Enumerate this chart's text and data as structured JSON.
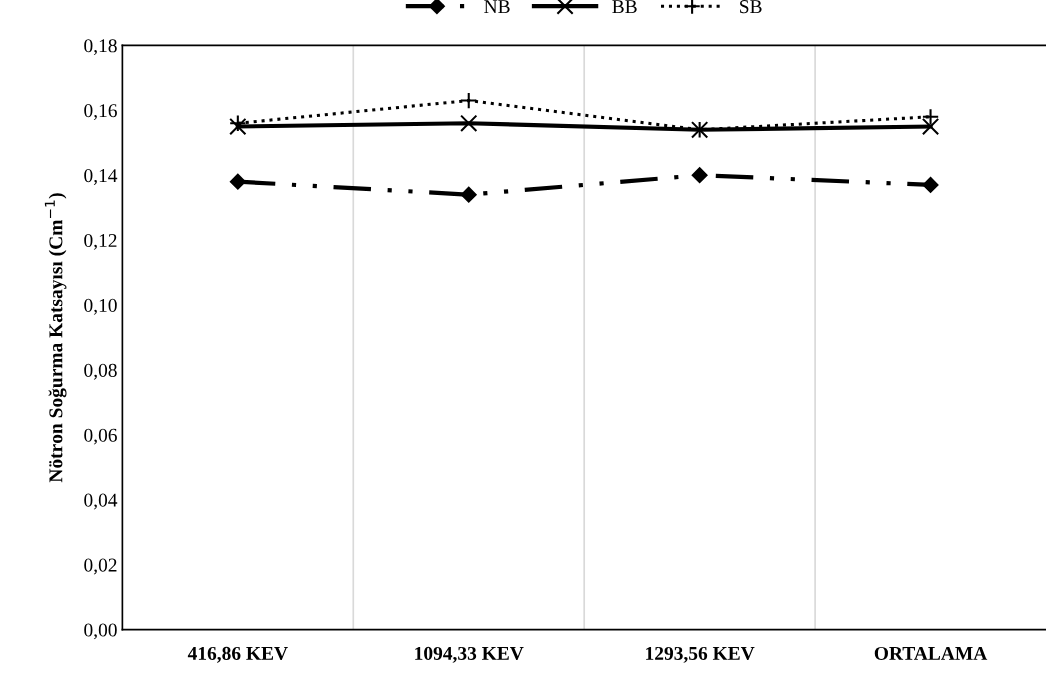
{
  "chart_data": {
    "type": "line",
    "ylabel": "Nötron Soğurma Katsayısı (Cm$^{−1}$)",
    "categories": [
      "416,86 KEV",
      "1094,33 KEV",
      "1293,56 KEV",
      "ORTALAMA"
    ],
    "series": [
      {
        "name": "NB",
        "color": "#000000",
        "values": [
          0.138,
          0.134,
          0.14,
          0.137
        ],
        "marker": "diamond",
        "line_style": "dashed"
      },
      {
        "name": "BB",
        "color": "#000000",
        "values": [
          0.155,
          0.156,
          0.154,
          0.155
        ],
        "marker": "cross",
        "line_style": "solid"
      },
      {
        "name": "SB",
        "color": "#000000",
        "values": [
          0.156,
          0.163,
          0.154,
          0.158
        ],
        "marker": "plus",
        "line_style": "dotted"
      }
    ],
    "ylim": [
      0,
      0.18
    ],
    "yticks": [
      {
        "value": 0,
        "label": "0,00"
      },
      {
        "value": 0.02,
        "label": "0,02"
      },
      {
        "value": 0.04,
        "label": "0,04"
      },
      {
        "value": 0.06,
        "label": "0,06"
      },
      {
        "value": 0.08,
        "label": "0,08"
      },
      {
        "value": 0.1,
        "label": "0,10"
      },
      {
        "value": 0.12,
        "label": "0,12"
      },
      {
        "value": 0.14,
        "label": "0,14"
      },
      {
        "value": 0.16,
        "label": "0,16"
      },
      {
        "value": 0.18,
        "label": "0,18"
      }
    ],
    "grid": "x",
    "legend": "top"
  }
}
